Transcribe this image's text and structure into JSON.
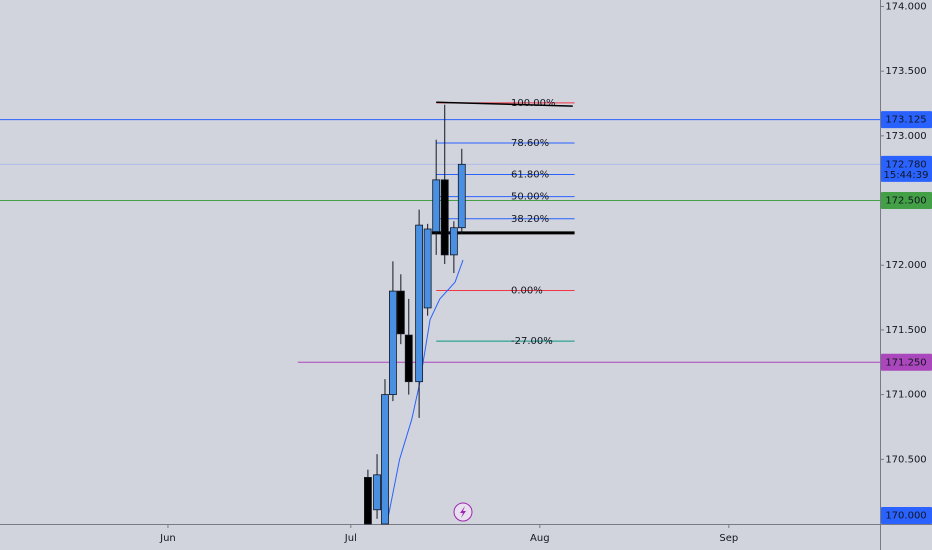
{
  "chart_data": {
    "type": "candlestick",
    "up_color": "#4a90e2",
    "down_color": "#000000",
    "candles": {
      "x": [
        184.8,
        186.3,
        187.6,
        188.9,
        190.2,
        191.5,
        193.2,
        194.6,
        196.0,
        197.4,
        198.9,
        200.2
      ],
      "open": [
        170.36,
        170.11,
        169.95,
        171.0,
        171.8,
        171.46,
        171.1,
        171.67,
        172.26,
        172.66,
        172.08,
        172.29
      ],
      "high": [
        170.42,
        170.54,
        171.12,
        172.03,
        171.93,
        171.74,
        172.43,
        172.32,
        172.97,
        173.24,
        172.34,
        172.9
      ],
      "low": [
        169.9,
        170.04,
        169.9,
        170.95,
        171.39,
        171.0,
        170.82,
        171.61,
        172.08,
        172.01,
        171.94,
        172.24
      ],
      "close": [
        169.95,
        170.38,
        171.0,
        171.8,
        171.47,
        171.1,
        172.31,
        172.28,
        172.66,
        172.08,
        172.29,
        172.78
      ]
    },
    "moving_average": {
      "color": "#2962ff",
      "x": [
        187.9,
        190.0,
        192.0,
        193.3,
        195.0,
        196.6,
        199.1,
        200.4
      ],
      "y": [
        170.0,
        170.5,
        170.81,
        171.09,
        171.58,
        171.74,
        171.87,
        172.04
      ]
    },
    "fibonacci": {
      "x": [
        196.0,
        218.7
      ],
      "low": 171.805,
      "high": 173.255,
      "levels": [
        {
          "value": 100,
          "label": "100.00%",
          "color": "#f23645"
        },
        {
          "value": 78.6,
          "label": "78.60%",
          "color": "#2962ff"
        },
        {
          "value": 61.8,
          "label": "61.80%",
          "color": "#2962ff"
        },
        {
          "value": 50,
          "label": "50.00%",
          "color": "#2962ff"
        },
        {
          "value": 38.2,
          "label": "38.20%",
          "color": "#2962ff"
        },
        {
          "value": 0,
          "label": "0.00%",
          "color": "#f23645"
        },
        {
          "value": -27,
          "label": "-27.00%",
          "color": "#089981"
        }
      ]
    },
    "segments": [
      {
        "x": [
          196.0,
          218.4
        ],
        "y": [
          173.26,
          173.23
        ],
        "color": "#000000",
        "width": 1.5
      },
      {
        "x": [
          195.3,
          218.7
        ],
        "y": [
          172.25,
          172.25
        ],
        "color": "#000000",
        "width": 3
      }
    ],
    "horizontal_lines": [
      {
        "value": 173.125,
        "color": "#2962ff",
        "x_start": null
      },
      {
        "value": 172.78,
        "color": "#b0bce8",
        "x_start": null
      },
      {
        "value": 172.5,
        "color": "#43a047",
        "x_start": null
      },
      {
        "value": 171.25,
        "color": "#ab47bc",
        "x_start": 173.3
      }
    ],
    "price_labels": [
      {
        "value": 173.125,
        "label": "173.125",
        "color": "#2962ff"
      },
      {
        "value": 172.78,
        "label": "172.780",
        "sub": "15:44:39",
        "color": "#2962ff"
      },
      {
        "value": 172.5,
        "label": "172.500",
        "color": "#43a047"
      },
      {
        "value": 171.25,
        "label": "171.250",
        "color": "#ab47bc"
      },
      {
        "value": 170.0,
        "label": "170.000",
        "color": "#2962ff"
      }
    ],
    "xlim": [
      124.45,
      268.8
    ],
    "xticks": [
      {
        "value": 152,
        "label": "Jun"
      },
      {
        "value": 182,
        "label": "Jul"
      },
      {
        "value": 213,
        "label": "Aug"
      },
      {
        "value": 244,
        "label": "Sep"
      }
    ],
    "ylim": [
      170.0,
      174.05
    ],
    "yticks": [
      {
        "value": 170.5,
        "label": "170.500"
      },
      {
        "value": 171,
        "label": "171.000"
      },
      {
        "value": 171.5,
        "label": "171.500"
      },
      {
        "value": 172,
        "label": "172.000"
      },
      {
        "value": 172.5,
        "label": "172.500"
      },
      {
        "value": 173,
        "label": "173.000"
      },
      {
        "value": 173.5,
        "label": "173.500"
      },
      {
        "value": 174,
        "label": "174.000"
      }
    ]
  }
}
